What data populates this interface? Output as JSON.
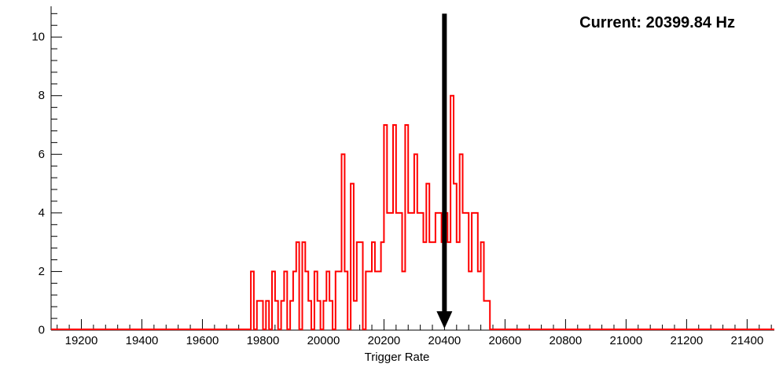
{
  "chart_data": {
    "type": "bar",
    "subtype": "step-histogram-outline",
    "title": "",
    "xlabel": "Trigger Rate",
    "ylabel": "",
    "xlim": [
      19100,
      21490
    ],
    "ylim": [
      0,
      11.05
    ],
    "grid": false,
    "legend": "none",
    "x_major_ticks": [
      19200,
      19400,
      19600,
      19800,
      20000,
      20200,
      20400,
      20600,
      20800,
      21000,
      21200,
      21400
    ],
    "x_minor_step": 40,
    "y_major_ticks": [
      0,
      2,
      4,
      6,
      8,
      10
    ],
    "y_minor_step": 0.4,
    "bin_start": 19760,
    "bin_width": 10,
    "counts": [
      2,
      0,
      1,
      1,
      0,
      1,
      0,
      2,
      1,
      0,
      1,
      2,
      0,
      1,
      2,
      3,
      0,
      3,
      2,
      1,
      0,
      2,
      1,
      0,
      1,
      2,
      1,
      0,
      2,
      2,
      6,
      2,
      0,
      5,
      1,
      3,
      3,
      0,
      2,
      2,
      3,
      2,
      2,
      3,
      7,
      4,
      4,
      7,
      4,
      4,
      2,
      7,
      4,
      4,
      6,
      4,
      4,
      3,
      5,
      3,
      3,
      4,
      4,
      3,
      4,
      3,
      8,
      5,
      3,
      6,
      4,
      4,
      2,
      4,
      4,
      2,
      3,
      1,
      1,
      0
    ],
    "series_color": "#ff0000",
    "axis_color": "#000000",
    "annotation": {
      "label": "Current: 20399.84 Hz",
      "arrow_x": 20399.84,
      "arrow_top_value": 10.8,
      "arrow_color": "#000000"
    }
  }
}
